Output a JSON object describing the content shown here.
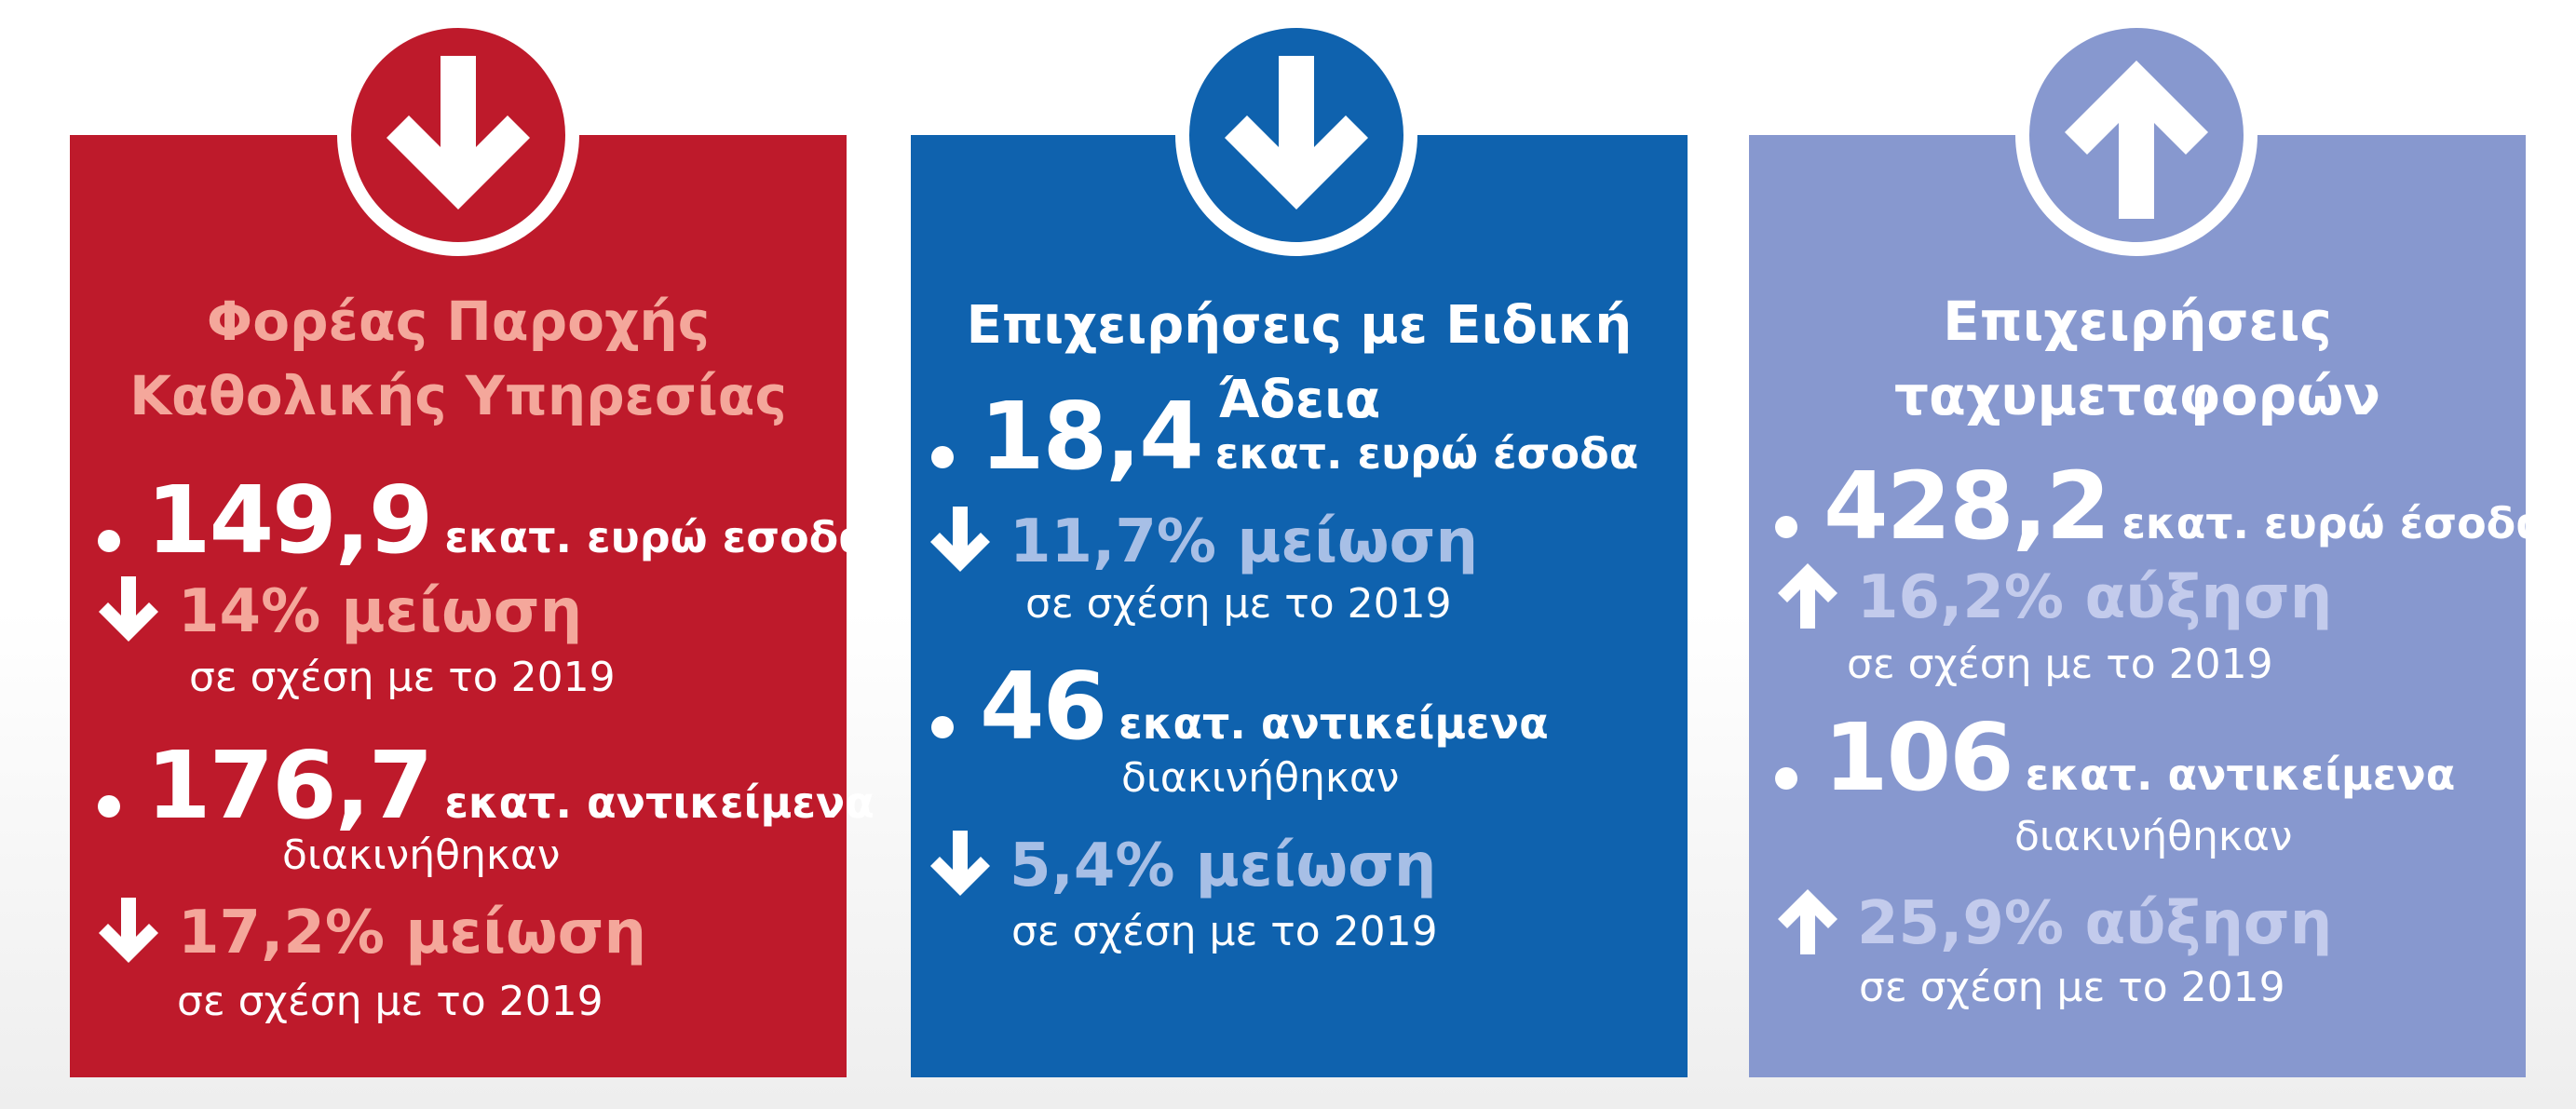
{
  "panels": [
    {
      "title_line1": "Φορέας Παροχής",
      "title_line2": "Καθολικής Υπηρεσίας",
      "badge_icon": "arrow-down-icon",
      "color": "#be1a2b",
      "accent_text_color": "#f4a79b",
      "revenue_value": "149,9",
      "revenue_unit": "εκατ. ευρώ εσοδα",
      "revenue_change": "14% μείωση",
      "revenue_change_note": "σε σχέση με το 2019",
      "items_value": "176,7",
      "items_unit": "εκατ. αντικείμενα",
      "items_note": "διακινήθηκαν",
      "items_change": "17,2% μείωση",
      "items_change_note": "σε σχέση με το 2019"
    },
    {
      "title_line1": "Επιχειρήσεις με Ειδική Άδεια",
      "badge_icon": "arrow-down-icon",
      "color": "#0f62ae",
      "accent_text_color": "#a7bfe6",
      "revenue_value": "18,4",
      "revenue_unit": "εκατ. ευρώ έσοδα",
      "revenue_change": "11,7% μείωση",
      "revenue_change_note": "σε σχέση με το 2019",
      "items_value": "46",
      "items_unit": "εκατ. αντικείμενα",
      "items_note": "διακινήθηκαν",
      "items_change": "5,4% μείωση",
      "items_change_note": "σε σχέση με το 2019"
    },
    {
      "title_line1": "Επιχειρήσεις",
      "title_line2": "ταχυμεταφορών",
      "badge_icon": "arrow-up-icon",
      "color": "#8798cf",
      "accent_text_color": "#c3cbec",
      "revenue_value": "428,2",
      "revenue_unit": "εκατ. ευρώ έσοδα",
      "revenue_change": "16,2% αύξηση",
      "revenue_change_note": "σε σχέση με το 2019",
      "items_value": "106",
      "items_unit": "εκατ. αντικείμενα",
      "items_note": "διακινήθηκαν",
      "items_change": "25,9% αύξηση",
      "items_change_note": "σε σχέση με το 2019"
    }
  ]
}
